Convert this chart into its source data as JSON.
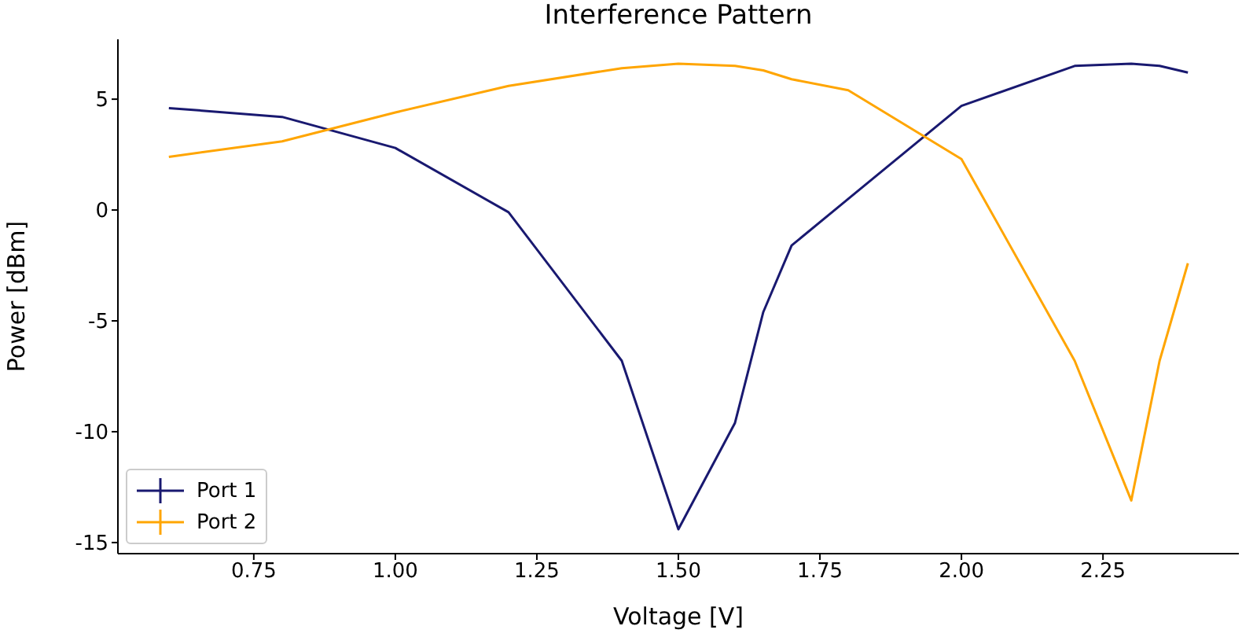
{
  "chart_data": {
    "type": "line",
    "title": "Interference Pattern",
    "xlabel": "Voltage [V]",
    "ylabel": "Power [dBm]",
    "x": [
      0.6,
      0.8,
      1.0,
      1.2,
      1.4,
      1.5,
      1.6,
      1.65,
      1.7,
      1.8,
      2.0,
      2.2,
      2.3,
      2.35,
      2.4
    ],
    "series": [
      {
        "name": "Port 1",
        "color": "#191970",
        "values": [
          4.6,
          4.2,
          2.8,
          -0.1,
          -6.8,
          -14.4,
          -9.6,
          -4.6,
          -1.6,
          0.5,
          4.7,
          6.5,
          6.6,
          6.5,
          6.2
        ]
      },
      {
        "name": "Port 2",
        "color": "#ffa500",
        "values": [
          2.4,
          3.1,
          4.4,
          5.6,
          6.4,
          6.6,
          6.5,
          6.3,
          5.9,
          5.4,
          2.3,
          -6.8,
          -13.1,
          -6.8,
          -2.4
        ]
      }
    ],
    "xlim": [
      0.51,
      2.49
    ],
    "ylim": [
      -15.5,
      7.7
    ],
    "xticks": [
      {
        "value": 0.75,
        "label": "0.75"
      },
      {
        "value": 1.0,
        "label": "1.00"
      },
      {
        "value": 1.25,
        "label": "1.25"
      },
      {
        "value": 1.5,
        "label": "1.50"
      },
      {
        "value": 1.75,
        "label": "1.75"
      },
      {
        "value": 2.0,
        "label": "2.00"
      },
      {
        "value": 2.25,
        "label": "2.25"
      }
    ],
    "yticks": [
      -15,
      -10,
      -5,
      0,
      5
    ],
    "grid": false,
    "legend": "bottom left",
    "marker": "none",
    "line_style": "solid"
  }
}
